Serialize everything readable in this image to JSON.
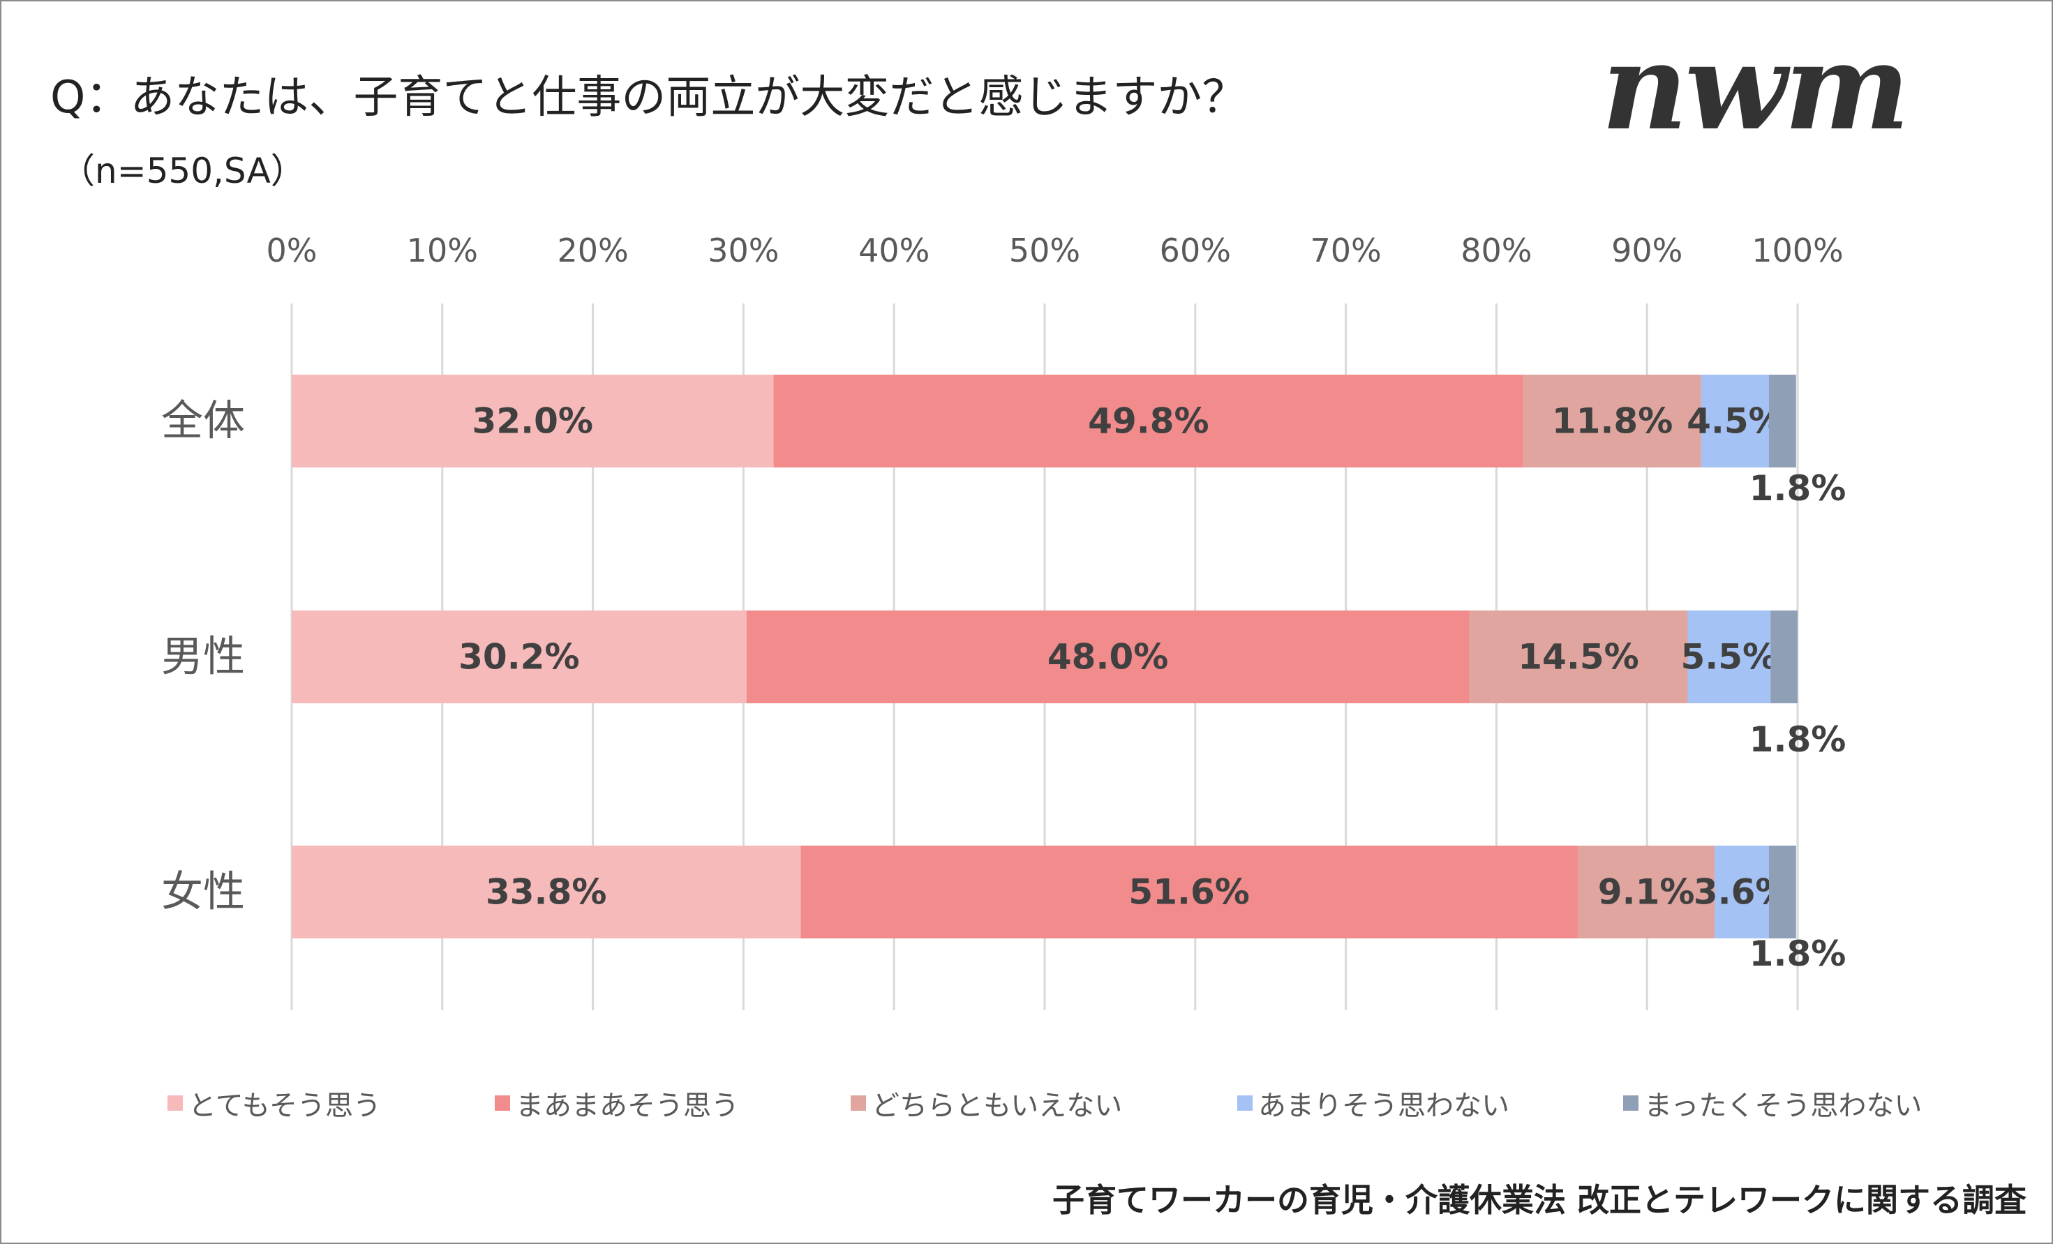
{
  "title": "Q：あなたは、子育てと仕事の両立が大変だと感じますか？",
  "subtitle": "（n=550,SA）",
  "logo": "nwm",
  "footer": "子育てワーカーの育児・介護休業法 改正とテレワークに関する調査",
  "chart_data": {
    "type": "bar",
    "orientation": "horizontal-stacked-100",
    "categories": [
      "全体",
      "男性",
      "女性"
    ],
    "xlim": [
      0,
      100
    ],
    "x_ticks": [
      "0%",
      "10%",
      "20%",
      "30%",
      "40%",
      "50%",
      "60%",
      "70%",
      "80%",
      "90%",
      "100%"
    ],
    "grid": true,
    "legend_position": "bottom",
    "series": [
      {
        "name": "とてもそう思う",
        "color": "#f7baba",
        "values": [
          32.0,
          30.2,
          33.8
        ]
      },
      {
        "name": "まあまあそう思う",
        "color": "#f28b8b",
        "values": [
          49.8,
          48.0,
          51.6
        ]
      },
      {
        "name": "どちらともいえない",
        "color": "#e0a59f",
        "values": [
          11.8,
          14.5,
          9.1
        ]
      },
      {
        "name": "あまりそう思わない",
        "color": "#a4c2f4",
        "values": [
          4.5,
          5.5,
          3.6
        ]
      },
      {
        "name": "まったくそう思わない",
        "color": "#8fa0b6",
        "values": [
          1.8,
          1.8,
          1.8
        ]
      }
    ]
  }
}
